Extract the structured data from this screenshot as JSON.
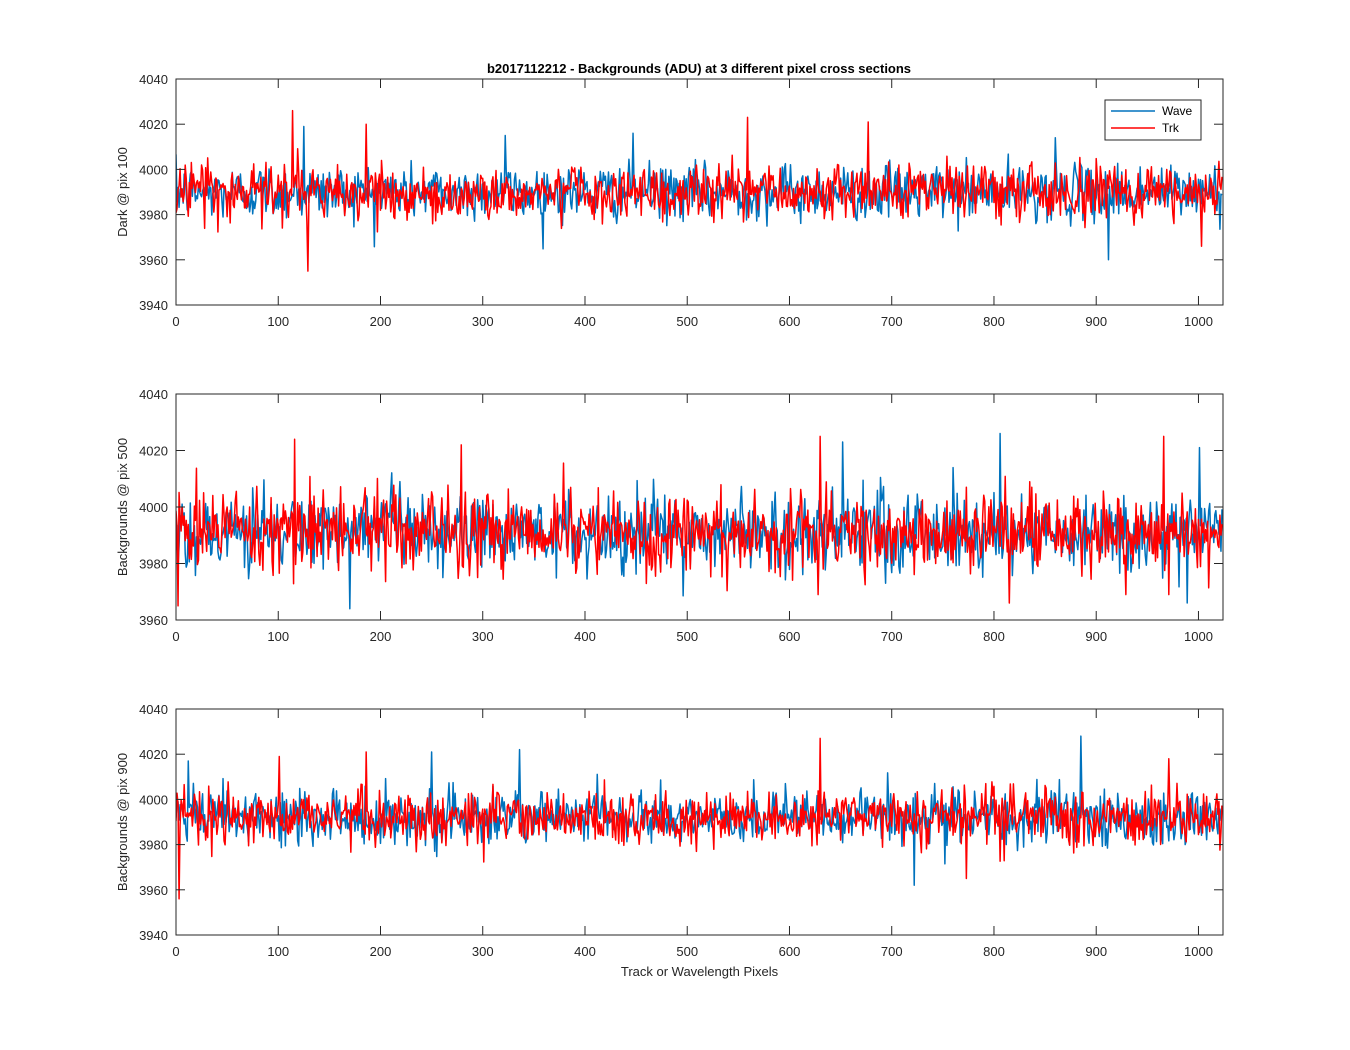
{
  "figure": {
    "title": "b2017112212 - Backgrounds (ADU) at 3 different pixel cross sections",
    "xlabel": "Track or Wavelength Pixels"
  },
  "legend": {
    "entries": [
      {
        "label": "Wave",
        "color": "#0072BD"
      },
      {
        "label": "Trk",
        "color": "#FF0000"
      }
    ]
  },
  "chart_data": [
    {
      "type": "line",
      "title": "b2017112212 - Backgrounds (ADU) at 3 different pixel cross sections",
      "xlabel": "",
      "ylabel": "Dark @ pix 100",
      "xlim": [
        0,
        1024
      ],
      "ylim": [
        3940,
        4040
      ],
      "xticks": [
        0,
        100,
        200,
        300,
        400,
        500,
        600,
        700,
        800,
        900,
        1000
      ],
      "yticks": [
        3940,
        3960,
        3980,
        4000,
        4020,
        4040
      ],
      "grid": false,
      "legend_position": "top-right",
      "noise_model": {
        "mean": 3990,
        "std": 6,
        "points": 1024
      },
      "series": [
        {
          "name": "Wave",
          "color": "#0072BD",
          "approx_min": 3960,
          "approx_max": 4019,
          "peaks": [
            [
              125,
              4019
            ],
            [
              322,
              4015
            ],
            [
              447,
              4016
            ],
            [
              860,
              4014
            ],
            [
              912,
              3960
            ]
          ]
        },
        {
          "name": "Trk",
          "color": "#FF0000",
          "approx_min": 3955,
          "approx_max": 4026,
          "peaks": [
            [
              114,
              4026
            ],
            [
              129,
              3955
            ],
            [
              186,
              4020
            ],
            [
              559,
              4023
            ],
            [
              677,
              4021
            ],
            [
              1003,
              3966
            ]
          ]
        }
      ]
    },
    {
      "type": "line",
      "xlabel": "",
      "ylabel": "Backgrounds @ pix 500",
      "xlim": [
        0,
        1024
      ],
      "ylim": [
        3960,
        4040
      ],
      "xticks": [
        0,
        100,
        200,
        300,
        400,
        500,
        600,
        700,
        800,
        900,
        1000
      ],
      "yticks": [
        3960,
        3980,
        4000,
        4020,
        4040
      ],
      "grid": false,
      "noise_model": {
        "mean": 3991,
        "std": 7,
        "points": 1024
      },
      "series": [
        {
          "name": "Wave",
          "color": "#0072BD",
          "approx_min": 3964,
          "approx_max": 4026,
          "peaks": [
            [
              170,
              3964
            ],
            [
              652,
              4023
            ],
            [
              806,
              4026
            ],
            [
              989,
              3966
            ],
            [
              1001,
              4021
            ]
          ]
        },
        {
          "name": "Trk",
          "color": "#FF0000",
          "approx_min": 3965,
          "approx_max": 4025,
          "peaks": [
            [
              2,
              3965
            ],
            [
              116,
              4024
            ],
            [
              279,
              4022
            ],
            [
              630,
              4025
            ],
            [
              815,
              3966
            ],
            [
              966,
              4025
            ]
          ]
        }
      ]
    },
    {
      "type": "line",
      "xlabel": "Track or Wavelength Pixels",
      "ylabel": "Backgrounds @ pix 900",
      "xlim": [
        0,
        1024
      ],
      "ylim": [
        3940,
        4040
      ],
      "xticks": [
        0,
        100,
        200,
        300,
        400,
        500,
        600,
        700,
        800,
        900,
        1000
      ],
      "yticks": [
        3940,
        3960,
        3980,
        4000,
        4020,
        4040
      ],
      "grid": false,
      "noise_model": {
        "mean": 3992,
        "std": 6,
        "points": 1024
      },
      "series": [
        {
          "name": "Wave",
          "color": "#0072BD",
          "approx_min": 3962,
          "approx_max": 4028,
          "peaks": [
            [
              12,
              4017
            ],
            [
              250,
              4021
            ],
            [
              336,
              4022
            ],
            [
              722,
              3962
            ],
            [
              885,
              4028
            ]
          ]
        },
        {
          "name": "Trk",
          "color": "#FF0000",
          "approx_min": 3956,
          "approx_max": 4027,
          "peaks": [
            [
              3,
              3956
            ],
            [
              101,
              4019
            ],
            [
              186,
              4021
            ],
            [
              630,
              4027
            ],
            [
              773,
              3965
            ],
            [
              971,
              4018
            ]
          ]
        }
      ]
    }
  ]
}
